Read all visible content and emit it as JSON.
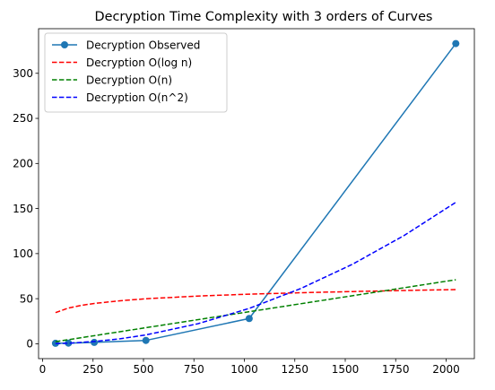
{
  "chart_data": {
    "type": "line",
    "title": "Decryption Time Complexity with 3 orders of Curves",
    "xlabel": "",
    "ylabel": "",
    "xlim": [
      -20,
      2140
    ],
    "ylim": [
      -16.5,
      349.5
    ],
    "x_ticks": [
      0,
      250,
      500,
      750,
      1000,
      1250,
      1500,
      1750,
      2000
    ],
    "y_ticks": [
      0,
      50,
      100,
      150,
      200,
      250,
      300
    ],
    "grid": false,
    "legend_position": "top-left",
    "series": [
      {
        "name": "Decryption Observed",
        "style": "solid-marker",
        "color": "#1f77b4",
        "x": [
          64,
          128,
          256,
          512,
          1024,
          2048
        ],
        "y": [
          0.5,
          0.7,
          1.5,
          3.7,
          28,
          333
        ]
      },
      {
        "name": "Decryption O(log n)",
        "style": "dashed",
        "color": "#ff0000",
        "x": [
          64,
          128,
          192,
          256,
          384,
          512,
          768,
          1024,
          1280,
          1536,
          1792,
          2048
        ],
        "y": [
          34.5,
          39.6,
          42.6,
          44.7,
          47.7,
          49.9,
          52.9,
          55.0,
          56.6,
          57.9,
          59.1,
          60.1
        ]
      },
      {
        "name": "Decryption O(n)",
        "style": "dashed",
        "color": "#008000",
        "x": [
          64,
          2048
        ],
        "y": [
          2.3,
          71.0
        ]
      },
      {
        "name": "Decryption O(n^2)",
        "style": "dashed",
        "color": "#0000ff",
        "x": [
          64,
          128,
          256,
          384,
          512,
          768,
          1024,
          1280,
          1536,
          1792,
          2048
        ],
        "y": [
          0.15,
          0.6,
          2.5,
          5.5,
          9.8,
          22.1,
          39.2,
          61.3,
          88.2,
          120.1,
          156.9
        ]
      }
    ]
  }
}
